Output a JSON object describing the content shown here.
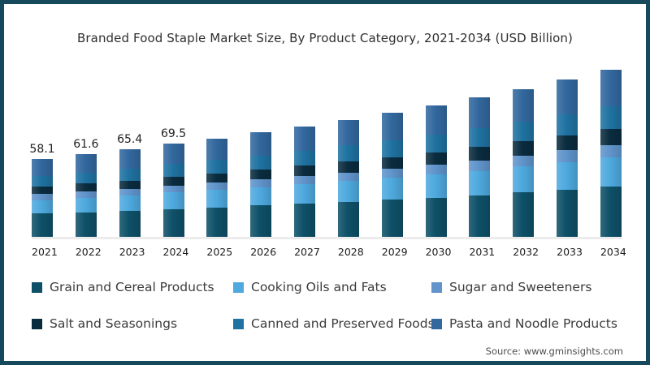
{
  "page": {
    "source": "Source: www.gminsights.com",
    "border_color": "#16495c",
    "background_color": "#ffffff"
  },
  "chart_data": {
    "type": "bar",
    "stacked": true,
    "title": "Branded Food Staple Market Size, By Product Category, 2021-2034 (USD Billion)",
    "unit": "USD Billion",
    "xlabel": "",
    "ylabel": "",
    "ylim": [
      0,
      130
    ],
    "grid": false,
    "legend_position": "bottom",
    "categories": [
      "2021",
      "2022",
      "2023",
      "2024",
      "2025",
      "2026",
      "2027",
      "2028",
      "2029",
      "2030",
      "2031",
      "2032",
      "2033",
      "2034"
    ],
    "bar_value_labels": [
      "58.1",
      "61.6",
      "65.4",
      "69.5",
      "",
      "",
      "",
      "",
      "",
      "",
      "",
      "",
      "",
      ""
    ],
    "totals": [
      58.1,
      61.6,
      65.4,
      69.5,
      73.5,
      78.0,
      82.5,
      87.5,
      92.5,
      98.0,
      104.0,
      110.5,
      117.5,
      125.0
    ],
    "series": [
      {
        "name": "Grain and Cereal Products",
        "color": "#0e5068",
        "values": [
          17.4,
          18.5,
          19.6,
          20.9,
          22.1,
          23.4,
          24.8,
          26.3,
          27.8,
          29.4,
          31.2,
          33.2,
          35.3,
          37.5
        ]
      },
      {
        "name": "Cooking Oils and Fats",
        "color": "#4ea9de",
        "values": [
          10.2,
          10.8,
          11.4,
          12.2,
          12.9,
          13.7,
          14.4,
          15.3,
          16.2,
          17.2,
          18.2,
          19.3,
          20.6,
          21.9
        ]
      },
      {
        "name": "Sugar and Sweeteners",
        "color": "#6094cb",
        "values": [
          4.4,
          4.6,
          4.9,
          5.2,
          5.5,
          5.9,
          6.2,
          6.6,
          6.9,
          7.4,
          7.8,
          8.3,
          8.8,
          9.4
        ]
      },
      {
        "name": "Salt and Seasonings",
        "color": "#0a2c3f",
        "values": [
          5.5,
          5.9,
          6.2,
          6.6,
          7.0,
          7.4,
          7.8,
          8.3,
          8.8,
          9.3,
          9.9,
          10.5,
          11.2,
          11.9
        ]
      },
      {
        "name": "Canned and Preserved Foods",
        "color": "#1f72a1",
        "values": [
          7.8,
          8.3,
          8.8,
          9.4,
          9.9,
          10.5,
          11.1,
          11.8,
          12.5,
          13.2,
          14.0,
          14.9,
          15.9,
          16.9
        ]
      },
      {
        "name": "Pasta and Noodle Products",
        "color": "#32689e",
        "values": [
          12.8,
          13.5,
          14.5,
          15.2,
          16.1,
          17.1,
          18.2,
          19.2,
          20.3,
          21.5,
          22.9,
          24.3,
          25.7,
          27.4
        ]
      }
    ]
  }
}
